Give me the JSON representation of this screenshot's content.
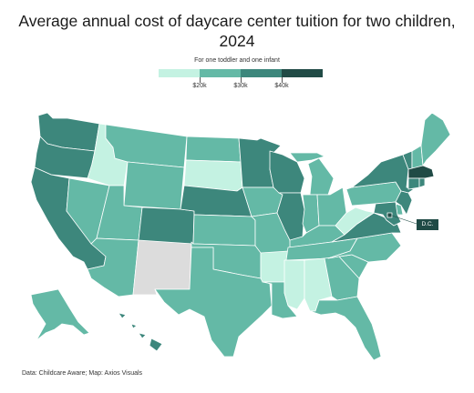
{
  "title": "Average annual cost of daycare center tuition for two children, 2024",
  "subtitle": "For one toddler and one infant",
  "legend": {
    "labels": [
      "$20k",
      "$30k",
      "$40k"
    ],
    "bins": [
      {
        "color": "#c4f2e2"
      },
      {
        "color": "#64b9a6"
      },
      {
        "color": "#3d877c"
      },
      {
        "color": "#214b46"
      }
    ]
  },
  "colors": {
    "bin1": "#c4f2e2",
    "bin2": "#64b9a6",
    "bin3": "#3d877c",
    "bin4": "#214b46",
    "no_data": "#dcdcdc",
    "border": "#ffffff"
  },
  "states": [
    {
      "code": "WA",
      "bin": 3
    },
    {
      "code": "OR",
      "bin": 3
    },
    {
      "code": "CA",
      "bin": 3
    },
    {
      "code": "NV",
      "bin": 2
    },
    {
      "code": "ID",
      "bin": 1
    },
    {
      "code": "MT",
      "bin": 2
    },
    {
      "code": "WY",
      "bin": 2
    },
    {
      "code": "UT",
      "bin": 2
    },
    {
      "code": "AZ",
      "bin": 2
    },
    {
      "code": "NM",
      "bin": 0
    },
    {
      "code": "CO",
      "bin": 3
    },
    {
      "code": "ND",
      "bin": 2
    },
    {
      "code": "SD",
      "bin": 1
    },
    {
      "code": "NE",
      "bin": 3
    },
    {
      "code": "KS",
      "bin": 2
    },
    {
      "code": "OK",
      "bin": 2
    },
    {
      "code": "TX",
      "bin": 2
    },
    {
      "code": "MN",
      "bin": 3
    },
    {
      "code": "IA",
      "bin": 2
    },
    {
      "code": "MO",
      "bin": 2
    },
    {
      "code": "AR",
      "bin": 1
    },
    {
      "code": "LA",
      "bin": 2
    },
    {
      "code": "WI",
      "bin": 3
    },
    {
      "code": "IL",
      "bin": 3
    },
    {
      "code": "MI",
      "bin": 2
    },
    {
      "code": "IN",
      "bin": 2
    },
    {
      "code": "OH",
      "bin": 2
    },
    {
      "code": "KY",
      "bin": 2
    },
    {
      "code": "TN",
      "bin": 2
    },
    {
      "code": "MS",
      "bin": 1
    },
    {
      "code": "AL",
      "bin": 1
    },
    {
      "code": "GA",
      "bin": 2
    },
    {
      "code": "FL",
      "bin": 2
    },
    {
      "code": "SC",
      "bin": 2
    },
    {
      "code": "NC",
      "bin": 2
    },
    {
      "code": "VA",
      "bin": 3
    },
    {
      "code": "WV",
      "bin": 1
    },
    {
      "code": "PA",
      "bin": 2
    },
    {
      "code": "NY",
      "bin": 3
    },
    {
      "code": "VT",
      "bin": 3
    },
    {
      "code": "NH",
      "bin": 2
    },
    {
      "code": "ME",
      "bin": 2
    },
    {
      "code": "MA",
      "bin": 4
    },
    {
      "code": "CT",
      "bin": 3
    },
    {
      "code": "RI",
      "bin": 3
    },
    {
      "code": "NJ",
      "bin": 3
    },
    {
      "code": "DE",
      "bin": 2
    },
    {
      "code": "MD",
      "bin": 3
    },
    {
      "code": "DC",
      "bin": 4
    },
    {
      "code": "AK",
      "bin": 2
    },
    {
      "code": "HI",
      "bin": 3
    }
  ],
  "dc_label": "D.C.",
  "footer": "Data: Childcare Aware; Map: Axios Visuals"
}
